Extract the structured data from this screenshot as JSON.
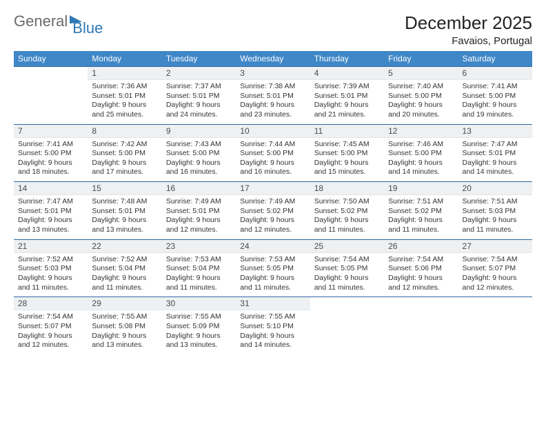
{
  "logo": {
    "text1": "General",
    "text2": "Blue"
  },
  "header": {
    "month_title": "December 2025",
    "location": "Favaios, Portugal"
  },
  "colors": {
    "header_bg": "#3f87c7",
    "header_text": "#ffffff",
    "row_border": "#2f6aa0",
    "daynum_bg": "#eef0f2",
    "text": "#333333"
  },
  "dow": [
    "Sunday",
    "Monday",
    "Tuesday",
    "Wednesday",
    "Thursday",
    "Friday",
    "Saturday"
  ],
  "weeks": [
    [
      null,
      {
        "n": "1",
        "sr": "7:36 AM",
        "ss": "5:01 PM",
        "dl": "9 hours and 25 minutes."
      },
      {
        "n": "2",
        "sr": "7:37 AM",
        "ss": "5:01 PM",
        "dl": "9 hours and 24 minutes."
      },
      {
        "n": "3",
        "sr": "7:38 AM",
        "ss": "5:01 PM",
        "dl": "9 hours and 23 minutes."
      },
      {
        "n": "4",
        "sr": "7:39 AM",
        "ss": "5:01 PM",
        "dl": "9 hours and 21 minutes."
      },
      {
        "n": "5",
        "sr": "7:40 AM",
        "ss": "5:00 PM",
        "dl": "9 hours and 20 minutes."
      },
      {
        "n": "6",
        "sr": "7:41 AM",
        "ss": "5:00 PM",
        "dl": "9 hours and 19 minutes."
      }
    ],
    [
      {
        "n": "7",
        "sr": "7:41 AM",
        "ss": "5:00 PM",
        "dl": "9 hours and 18 minutes."
      },
      {
        "n": "8",
        "sr": "7:42 AM",
        "ss": "5:00 PM",
        "dl": "9 hours and 17 minutes."
      },
      {
        "n": "9",
        "sr": "7:43 AM",
        "ss": "5:00 PM",
        "dl": "9 hours and 16 minutes."
      },
      {
        "n": "10",
        "sr": "7:44 AM",
        "ss": "5:00 PM",
        "dl": "9 hours and 16 minutes."
      },
      {
        "n": "11",
        "sr": "7:45 AM",
        "ss": "5:00 PM",
        "dl": "9 hours and 15 minutes."
      },
      {
        "n": "12",
        "sr": "7:46 AM",
        "ss": "5:00 PM",
        "dl": "9 hours and 14 minutes."
      },
      {
        "n": "13",
        "sr": "7:47 AM",
        "ss": "5:01 PM",
        "dl": "9 hours and 14 minutes."
      }
    ],
    [
      {
        "n": "14",
        "sr": "7:47 AM",
        "ss": "5:01 PM",
        "dl": "9 hours and 13 minutes."
      },
      {
        "n": "15",
        "sr": "7:48 AM",
        "ss": "5:01 PM",
        "dl": "9 hours and 13 minutes."
      },
      {
        "n": "16",
        "sr": "7:49 AM",
        "ss": "5:01 PM",
        "dl": "9 hours and 12 minutes."
      },
      {
        "n": "17",
        "sr": "7:49 AM",
        "ss": "5:02 PM",
        "dl": "9 hours and 12 minutes."
      },
      {
        "n": "18",
        "sr": "7:50 AM",
        "ss": "5:02 PM",
        "dl": "9 hours and 11 minutes."
      },
      {
        "n": "19",
        "sr": "7:51 AM",
        "ss": "5:02 PM",
        "dl": "9 hours and 11 minutes."
      },
      {
        "n": "20",
        "sr": "7:51 AM",
        "ss": "5:03 PM",
        "dl": "9 hours and 11 minutes."
      }
    ],
    [
      {
        "n": "21",
        "sr": "7:52 AM",
        "ss": "5:03 PM",
        "dl": "9 hours and 11 minutes."
      },
      {
        "n": "22",
        "sr": "7:52 AM",
        "ss": "5:04 PM",
        "dl": "9 hours and 11 minutes."
      },
      {
        "n": "23",
        "sr": "7:53 AM",
        "ss": "5:04 PM",
        "dl": "9 hours and 11 minutes."
      },
      {
        "n": "24",
        "sr": "7:53 AM",
        "ss": "5:05 PM",
        "dl": "9 hours and 11 minutes."
      },
      {
        "n": "25",
        "sr": "7:54 AM",
        "ss": "5:05 PM",
        "dl": "9 hours and 11 minutes."
      },
      {
        "n": "26",
        "sr": "7:54 AM",
        "ss": "5:06 PM",
        "dl": "9 hours and 12 minutes."
      },
      {
        "n": "27",
        "sr": "7:54 AM",
        "ss": "5:07 PM",
        "dl": "9 hours and 12 minutes."
      }
    ],
    [
      {
        "n": "28",
        "sr": "7:54 AM",
        "ss": "5:07 PM",
        "dl": "9 hours and 12 minutes."
      },
      {
        "n": "29",
        "sr": "7:55 AM",
        "ss": "5:08 PM",
        "dl": "9 hours and 13 minutes."
      },
      {
        "n": "30",
        "sr": "7:55 AM",
        "ss": "5:09 PM",
        "dl": "9 hours and 13 minutes."
      },
      {
        "n": "31",
        "sr": "7:55 AM",
        "ss": "5:10 PM",
        "dl": "9 hours and 14 minutes."
      },
      null,
      null,
      null
    ]
  ],
  "labels": {
    "sunrise": "Sunrise:",
    "sunset": "Sunset:",
    "daylight": "Daylight:"
  }
}
